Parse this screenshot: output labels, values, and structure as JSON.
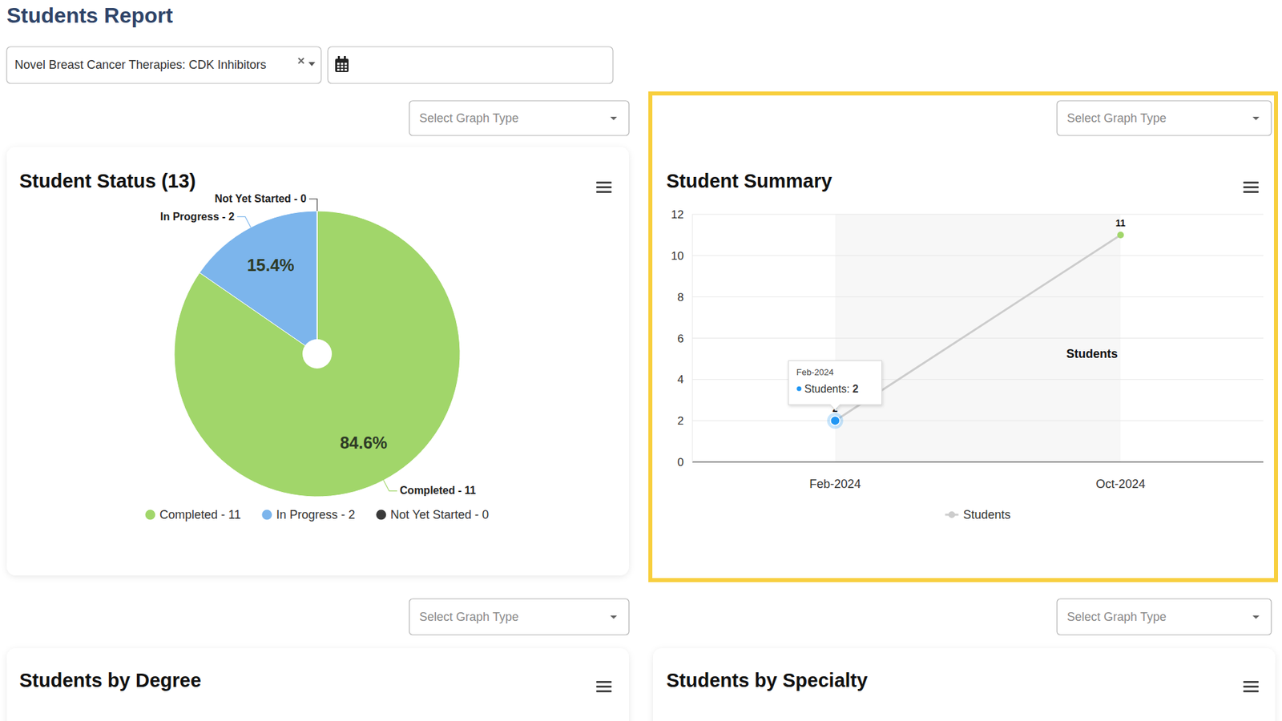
{
  "page": {
    "title": "Students Report",
    "filter": "Novel Breast Cancer Therapies: CDK Inhibitors",
    "graph_type_placeholder": "Select Graph Type",
    "cards": [
      {
        "title": "Students by Degree"
      },
      {
        "title": "Students by Specialty"
      }
    ]
  },
  "chart_data": [
    {
      "type": "pie",
      "title": "Student Status (13)",
      "categories": [
        "Completed",
        "In Progress",
        "Not Yet Started"
      ],
      "values": [
        11,
        2,
        0
      ],
      "value_labels": [
        "Completed - 11",
        "In Progress - 2",
        "Not Yet Started - 0"
      ],
      "percent_labels": [
        "84.6%",
        "15.4%",
        null
      ],
      "colors": [
        "#a1d66a",
        "#7cb5ec",
        "#3a3a3a"
      ],
      "data_labels": true,
      "legend": "bottom"
    },
    {
      "type": "line",
      "title": "Student Summary",
      "categories": [
        "Feb-2024",
        "Oct-2024"
      ],
      "series": [
        {
          "name": "Students",
          "color": "#cccccc",
          "colors": [
            "#2196f3",
            "#a1d66a"
          ],
          "marker": "circle",
          "values": [
            2,
            11
          ]
        }
      ],
      "ylim": [
        0,
        12
      ],
      "yticks": [
        0,
        2,
        4,
        6,
        8,
        10,
        12
      ],
      "grid": true,
      "data_labels": true,
      "legend": "bottom",
      "tooltip": {
        "x": "Feb-2024",
        "series": "Students",
        "value": 2
      }
    }
  ]
}
